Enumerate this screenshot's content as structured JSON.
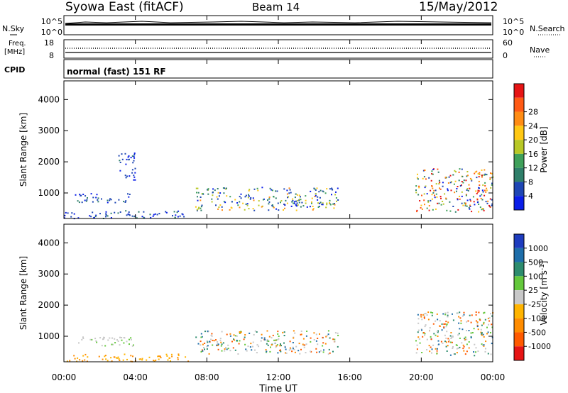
{
  "header": {
    "station": "Syowa East (fitACF)",
    "beam": "Beam 14",
    "date": "15/May/2012"
  },
  "strip_labels": {
    "nsky": "N.Sky",
    "nsearch": "N.Search",
    "freq_line1": "Freq.",
    "freq_line2": "[MHz]",
    "nave": "Nave",
    "cpid": "CPID",
    "cpid_value": "normal (fast) 151 RF",
    "nsky_ticks": [
      "10^5",
      "10^0"
    ],
    "nsearch_ticks": [
      "10^5",
      "10^0"
    ],
    "freq_ticks": [
      "18",
      "8"
    ],
    "nave_ticks": [
      "60",
      "0"
    ]
  },
  "colors": {
    "power_scale": [
      "#0a1ee8",
      "#1e46b4",
      "#2f7f6a",
      "#3fa05a",
      "#b8c826",
      "#ffc814",
      "#ff8c14",
      "#ff5a14",
      "#e61414"
    ],
    "velocity_scale": [
      "#1e3cbe",
      "#1e6eaa",
      "#2d8c6e",
      "#64c83c",
      "#c8c8c8",
      "#ffb400",
      "#ff8c00",
      "#ff5a00",
      "#e61414"
    ]
  },
  "chart_data": [
    {
      "type": "heatmap",
      "name": "power",
      "ylabel": "Slant Range [km]",
      "ylim": [
        180,
        4600
      ],
      "yticks": [
        1000,
        2000,
        3000,
        4000
      ],
      "xlim_hours": [
        0,
        24
      ],
      "colorbar": {
        "label": "Power [dB]",
        "range": [
          0,
          32
        ],
        "tick_labels": [
          "4",
          "8",
          "12",
          "16",
          "20",
          "24",
          "28"
        ]
      },
      "echo_regions": [
        {
          "t_start": "00:00",
          "t_end": "07:00",
          "range_km": [
            200,
            450
          ],
          "level": "low"
        },
        {
          "t_start": "00:30",
          "t_end": "03:40",
          "range_km": [
            700,
            1000
          ],
          "level": "low"
        },
        {
          "t_start": "03:00",
          "t_end": "04:00",
          "range_km": [
            1400,
            2300
          ],
          "level": "low"
        },
        {
          "t_start": "07:20",
          "t_end": "15:20",
          "range_km": [
            450,
            1200
          ],
          "level": "mixed"
        },
        {
          "t_start": "19:40",
          "t_end": "24:00",
          "range_km": [
            400,
            1800
          ],
          "level": "high"
        }
      ]
    },
    {
      "type": "heatmap",
      "name": "velocity",
      "ylabel": "Slant Range [km]",
      "xlabel": "Time UT",
      "ylim": [
        180,
        4600
      ],
      "yticks": [
        1000,
        2000,
        3000,
        4000
      ],
      "xticks": [
        "00:00",
        "04:00",
        "08:00",
        "12:00",
        "16:00",
        "20:00",
        "00:00"
      ],
      "xlim_hours": [
        0,
        24
      ],
      "colorbar": {
        "label": "Velocity [m s-1]",
        "tick_labels": [
          "1000",
          "500",
          "100",
          "25",
          "-25",
          "-100",
          "-500",
          "-1000"
        ]
      },
      "echo_regions": [
        {
          "t_start": "00:00",
          "t_end": "07:00",
          "range_km": [
            200,
            450
          ],
          "level": "negative"
        },
        {
          "t_start": "00:30",
          "t_end": "04:00",
          "range_km": [
            700,
            1000
          ],
          "level": "near-zero"
        },
        {
          "t_start": "07:20",
          "t_end": "15:20",
          "range_km": [
            450,
            1200
          ],
          "level": "mixed"
        },
        {
          "t_start": "19:40",
          "t_end": "24:00",
          "range_km": [
            400,
            1800
          ],
          "level": "mixed"
        }
      ]
    }
  ]
}
